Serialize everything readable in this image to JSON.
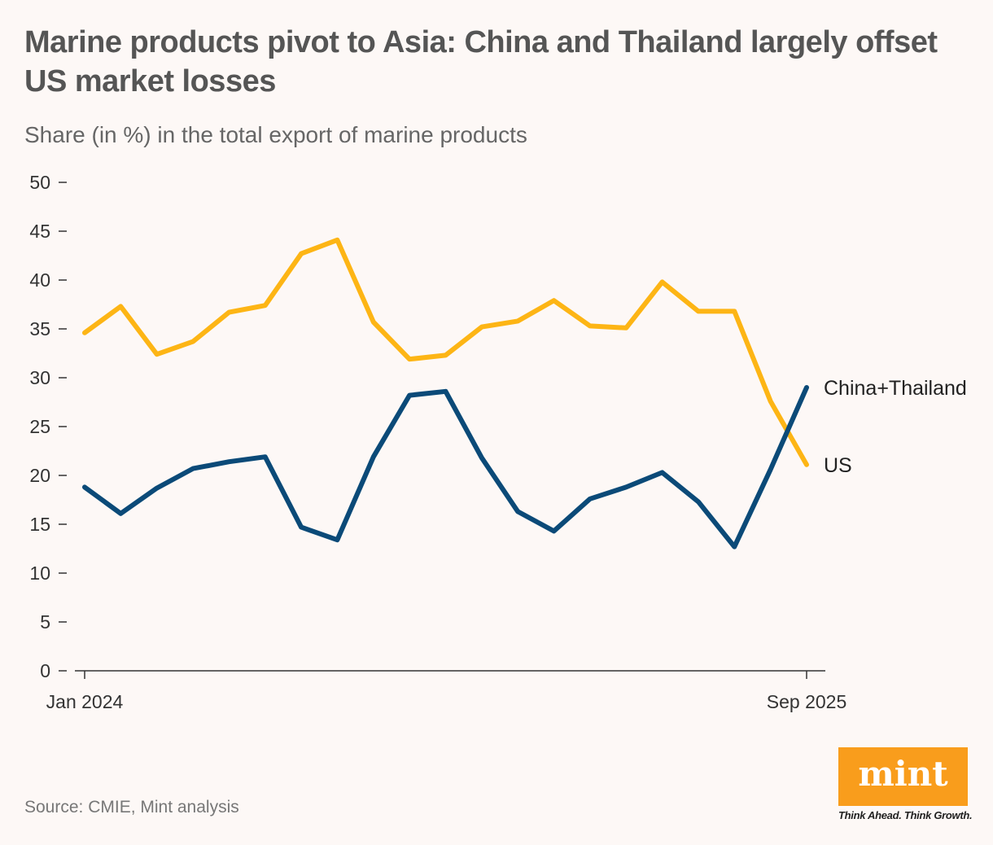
{
  "title": "Marine products pivot to Asia: China and Thailand largely offset US market losses",
  "subtitle": "Share (in %) in the total export of marine products",
  "source": "Source: CMIE, Mint analysis",
  "logo": {
    "text": "mint",
    "tagline": "Think Ahead. Think Growth.",
    "color": "#f99d1c"
  },
  "chart_data": {
    "type": "line",
    "ylim": [
      0,
      50
    ],
    "yticks": [
      0,
      5,
      10,
      15,
      20,
      25,
      30,
      35,
      40,
      45,
      50
    ],
    "x": [
      "Jan 2024",
      "Feb 2024",
      "Mar 2024",
      "Apr 2024",
      "May 2024",
      "Jun 2024",
      "Jul 2024",
      "Aug 2024",
      "Sep 2024",
      "Oct 2024",
      "Nov 2024",
      "Dec 2024",
      "Jan 2025",
      "Feb 2025",
      "Mar 2025",
      "Apr 2025",
      "May 2025",
      "Jun 2025",
      "Jul 2025",
      "Aug 2025",
      "Sep 2025"
    ],
    "xtick_labels": [
      "Jan 2024",
      "Sep 2025"
    ],
    "grid": false,
    "series": [
      {
        "name": "US",
        "color": "#fdb515",
        "values": [
          34.6,
          37.3,
          32.4,
          33.7,
          36.7,
          37.4,
          42.7,
          44.1,
          35.7,
          31.9,
          32.3,
          35.2,
          35.8,
          37.9,
          35.3,
          35.1,
          39.8,
          36.8,
          36.8,
          27.6,
          21.1
        ]
      },
      {
        "name": "China+Thailand",
        "color": "#0b4a78",
        "values": [
          18.8,
          16.1,
          18.7,
          20.7,
          21.4,
          21.9,
          14.7,
          13.4,
          21.9,
          28.2,
          28.6,
          21.8,
          16.3,
          14.3,
          17.6,
          18.8,
          20.3,
          17.3,
          12.7,
          20.6,
          29.0
        ]
      }
    ]
  }
}
